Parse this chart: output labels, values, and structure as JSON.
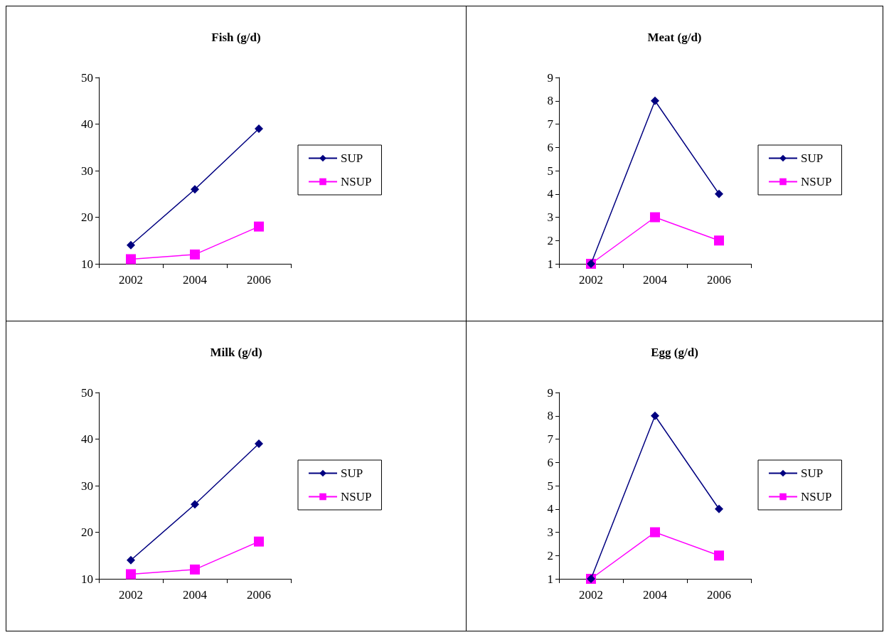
{
  "chart_data": [
    {
      "type": "line",
      "title": "Fish (g/d)",
      "categories": [
        "2002",
        "2004",
        "2006"
      ],
      "ylim": [
        10,
        50
      ],
      "yticks": [
        10,
        20,
        30,
        40,
        50
      ],
      "grid": false,
      "legend": "right",
      "series": [
        {
          "name": "SUP",
          "color": "#000080",
          "marker": "diamond",
          "values": [
            14,
            26,
            39
          ]
        },
        {
          "name": "NSUP",
          "color": "#ff00ff",
          "marker": "square",
          "values": [
            11,
            12,
            18
          ]
        }
      ]
    },
    {
      "type": "line",
      "title": "Meat (g/d)",
      "categories": [
        "2002",
        "2004",
        "2006"
      ],
      "ylim": [
        1,
        9
      ],
      "yticks": [
        1,
        2,
        3,
        4,
        5,
        6,
        7,
        8,
        9
      ],
      "grid": false,
      "legend": "right",
      "series": [
        {
          "name": "SUP",
          "color": "#000080",
          "marker": "diamond",
          "values": [
            1,
            8,
            4
          ]
        },
        {
          "name": "NSUP",
          "color": "#ff00ff",
          "marker": "square",
          "values": [
            1,
            3,
            2
          ]
        }
      ]
    },
    {
      "type": "line",
      "title": "Milk (g/d)",
      "categories": [
        "2002",
        "2004",
        "2006"
      ],
      "ylim": [
        10,
        50
      ],
      "yticks": [
        10,
        20,
        30,
        40,
        50
      ],
      "grid": false,
      "legend": "right",
      "series": [
        {
          "name": "SUP",
          "color": "#000080",
          "marker": "diamond",
          "values": [
            14,
            26,
            39
          ]
        },
        {
          "name": "NSUP",
          "color": "#ff00ff",
          "marker": "square",
          "values": [
            11,
            12,
            18
          ]
        }
      ]
    },
    {
      "type": "line",
      "title": "Egg (g/d)",
      "categories": [
        "2002",
        "2004",
        "2006"
      ],
      "ylim": [
        1,
        9
      ],
      "yticks": [
        1,
        2,
        3,
        4,
        5,
        6,
        7,
        8,
        9
      ],
      "grid": false,
      "legend": "right",
      "series": [
        {
          "name": "SUP",
          "color": "#000080",
          "marker": "diamond",
          "values": [
            1,
            8,
            4
          ]
        },
        {
          "name": "NSUP",
          "color": "#ff00ff",
          "marker": "square",
          "values": [
            1,
            3,
            2
          ]
        }
      ]
    }
  ]
}
